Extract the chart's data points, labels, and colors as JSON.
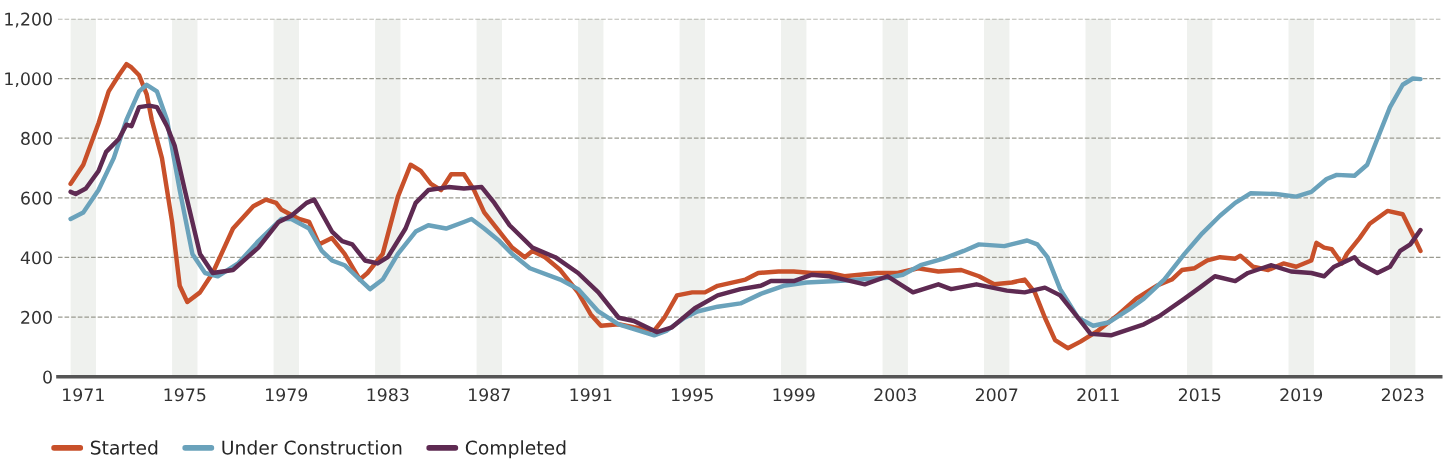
{
  "chart_data": {
    "type": "line",
    "xlim": [
      1970,
      2024.5
    ],
    "ylim": [
      0,
      1200
    ],
    "xticks": [
      1971,
      1975,
      1979,
      1983,
      1987,
      1991,
      1995,
      1999,
      2003,
      2007,
      2011,
      2015,
      2019,
      2023
    ],
    "yticks": [
      0,
      {
        "value": 200,
        "label": "200"
      },
      {
        "value": 400,
        "label": "400"
      },
      {
        "value": 600,
        "label": "600"
      },
      {
        "value": 800,
        "label": "800"
      },
      {
        "value": 1000,
        "label": "1,000"
      },
      {
        "value": 1200,
        "label": "1,200"
      }
    ],
    "grid": "y",
    "legend": "bottom left",
    "line_style": "solid",
    "marker": "none",
    "bands": [
      {
        "axis": "x",
        "from": 1970.5,
        "to": 1971.5,
        "color": "#eff1ee"
      },
      {
        "axis": "x",
        "from": 1974.5,
        "to": 1975.5,
        "color": "#eff1ee"
      },
      {
        "axis": "x",
        "from": 1978.5,
        "to": 1979.5,
        "color": "#eff1ee"
      },
      {
        "axis": "x",
        "from": 1982.5,
        "to": 1983.5,
        "color": "#eff1ee"
      },
      {
        "axis": "x",
        "from": 1986.5,
        "to": 1987.5,
        "color": "#eff1ee"
      },
      {
        "axis": "x",
        "from": 1990.5,
        "to": 1991.5,
        "color": "#eff1ee"
      },
      {
        "axis": "x",
        "from": 1994.5,
        "to": 1995.5,
        "color": "#eff1ee"
      },
      {
        "axis": "x",
        "from": 1998.5,
        "to": 1999.5,
        "color": "#eff1ee"
      },
      {
        "axis": "x",
        "from": 2002.5,
        "to": 2003.5,
        "color": "#eff1ee"
      },
      {
        "axis": "x",
        "from": 2006.5,
        "to": 2007.5,
        "color": "#eff1ee"
      },
      {
        "axis": "x",
        "from": 2010.5,
        "to": 2011.5,
        "color": "#eff1ee"
      },
      {
        "axis": "x",
        "from": 2014.5,
        "to": 2015.5,
        "color": "#eff1ee"
      },
      {
        "axis": "x",
        "from": 2018.5,
        "to": 2019.5,
        "color": "#eff1ee"
      },
      {
        "axis": "x",
        "from": 2022.5,
        "to": 2023.5,
        "color": "#eff1ee"
      }
    ],
    "series": [
      {
        "name": "Started",
        "color": "#c8502a",
        "x": [
          1970.5,
          1971.0,
          1971.6,
          1972.0,
          1972.4,
          1972.7,
          1972.9,
          1973.2,
          1973.5,
          1973.7,
          1974.1,
          1974.5,
          1974.8,
          1975.1,
          1975.6,
          1976.1,
          1976.9,
          1977.7,
          1978.2,
          1978.6,
          1978.8,
          1979.5,
          1979.9,
          1980.3,
          1980.8,
          1981.3,
          1981.9,
          1982.2,
          1982.8,
          1983.4,
          1983.9,
          1984.3,
          1984.7,
          1985.1,
          1985.5,
          1986.0,
          1986.4,
          1986.8,
          1987.4,
          1987.9,
          1988.4,
          1988.7,
          1989.2,
          1989.8,
          1990.5,
          1991.0,
          1991.4,
          1992.1,
          1992.7,
          1993.5,
          1993.9,
          1994.4,
          1995.0,
          1995.5,
          1996.0,
          1997.1,
          1997.6,
          1998.4,
          1999.0,
          1999.7,
          2000.4,
          2001.0,
          2002.3,
          2003.1,
          2003.9,
          2004.7,
          2005.6,
          2006.3,
          2006.9,
          2007.6,
          2008.1,
          2008.5,
          2008.9,
          2009.3,
          2009.8,
          2010.3,
          2011.0,
          2011.8,
          2012.5,
          2013.3,
          2013.9,
          2014.3,
          2014.8,
          2015.3,
          2015.8,
          2016.4,
          2016.6,
          2017.1,
          2017.7,
          2018.3,
          2018.8,
          2019.4,
          2019.6,
          2019.9,
          2020.2,
          2020.6,
          2020.8,
          2021.3,
          2021.7,
          2022.4,
          2023.0,
          2023.4,
          2023.7
        ],
        "values": [
          647,
          711,
          850,
          957,
          1011,
          1048,
          1037,
          1011,
          947,
          861,
          733,
          519,
          305,
          251,
          283,
          348,
          497,
          572,
          594,
          583,
          561,
          529,
          519,
          444,
          465,
          412,
          326,
          348,
          412,
          604,
          711,
          690,
          647,
          626,
          679,
          679,
          626,
          551,
          487,
          433,
          401,
          422,
          401,
          358,
          283,
          209,
          171,
          176,
          166,
          155,
          198,
          273,
          283,
          283,
          305,
          326,
          348,
          353,
          353,
          348,
          348,
          337,
          348,
          348,
          364,
          353,
          358,
          337,
          310,
          316,
          326,
          283,
          198,
          123,
          96,
          118,
          155,
          209,
          262,
          305,
          326,
          358,
          364,
          390,
          401,
          396,
          406,
          369,
          358,
          380,
          369,
          390,
          449,
          433,
          428,
          380,
          412,
          465,
          513,
          556,
          545,
          476,
          422
        ]
      },
      {
        "name": "Under Construction",
        "color": "#6aa2bb",
        "x": [
          1970.5,
          1971.0,
          1971.6,
          1972.2,
          1972.7,
          1973.2,
          1973.5,
          1973.9,
          1974.3,
          1974.8,
          1975.3,
          1975.8,
          1976.3,
          1977.1,
          1977.9,
          1978.8,
          1979.2,
          1979.9,
          1980.4,
          1980.8,
          1981.3,
          1981.9,
          1982.3,
          1982.8,
          1983.4,
          1984.1,
          1984.6,
          1985.3,
          1986.0,
          1986.3,
          1986.8,
          1987.4,
          1987.9,
          1988.6,
          1989.8,
          1990.5,
          1991.3,
          1992.1,
          1992.9,
          1993.5,
          1994.0,
          1994.7,
          1995.2,
          1996.0,
          1996.9,
          1997.7,
          1998.6,
          1999.5,
          2000.7,
          2001.6,
          2002.7,
          2003.3,
          2004.0,
          2004.9,
          2005.7,
          2006.3,
          2007.3,
          2008.2,
          2008.6,
          2009.0,
          2009.5,
          2010.2,
          2010.8,
          2011.4,
          2012.2,
          2012.8,
          2013.6,
          2014.4,
          2015.1,
          2015.8,
          2016.4,
          2017.0,
          2018.0,
          2018.8,
          2019.4,
          2020.0,
          2020.4,
          2021.1,
          2021.6,
          2022.0,
          2022.5,
          2023.0,
          2023.4,
          2023.7
        ],
        "values": [
          529,
          551,
          626,
          733,
          861,
          957,
          979,
          957,
          861,
          626,
          412,
          348,
          337,
          380,
          455,
          529,
          529,
          497,
          422,
          390,
          374,
          326,
          294,
          326,
          412,
          487,
          508,
          497,
          519,
          529,
          497,
          455,
          412,
          364,
          326,
          294,
          219,
          176,
          155,
          139,
          155,
          198,
          219,
          235,
          246,
          278,
          305,
          316,
          321,
          326,
          332,
          342,
          374,
          396,
          422,
          444,
          438,
          457,
          444,
          401,
          294,
          198,
          171,
          182,
          225,
          262,
          326,
          412,
          481,
          540,
          583,
          615,
          613,
          604,
          620,
          663,
          677,
          674,
          711,
          797,
          904,
          979,
          1000,
          998
        ]
      },
      {
        "name": "Completed",
        "color": "#5e2a52",
        "x": [
          1970.5,
          1970.7,
          1971.1,
          1971.6,
          1971.9,
          1972.4,
          1972.7,
          1972.9,
          1973.2,
          1973.6,
          1973.9,
          1974.3,
          1974.6,
          1975.0,
          1975.6,
          1976.1,
          1976.9,
          1977.9,
          1978.7,
          1979.2,
          1979.8,
          1980.1,
          1980.8,
          1981.2,
          1981.6,
          1982.1,
          1982.6,
          1983.0,
          1983.7,
          1984.1,
          1984.6,
          1985.4,
          1986.0,
          1986.7,
          1987.2,
          1987.8,
          1988.7,
          1989.6,
          1990.5,
          1991.3,
          1992.1,
          1992.7,
          1993.6,
          1994.2,
          1995.1,
          1996.0,
          1996.9,
          1997.7,
          1998.1,
          1999.0,
          1999.7,
          2000.4,
          2001.0,
          2001.8,
          2002.7,
          2003.7,
          2004.7,
          2005.2,
          2006.2,
          2007.4,
          2008.1,
          2008.9,
          2009.5,
          2010.2,
          2010.7,
          2011.5,
          2012.8,
          2013.4,
          2014.4,
          2015.0,
          2015.6,
          2016.4,
          2016.9,
          2017.8,
          2018.6,
          2019.4,
          2019.9,
          2020.3,
          2021.1,
          2021.3,
          2022.0,
          2022.5,
          2022.9,
          2023.3,
          2023.7
        ],
        "values": [
          620,
          613,
          631,
          690,
          754,
          797,
          845,
          840,
          904,
          909,
          904,
          840,
          775,
          626,
          412,
          348,
          358,
          433,
          519,
          540,
          583,
          594,
          487,
          455,
          444,
          390,
          380,
          401,
          497,
          583,
          626,
          636,
          631,
          636,
          583,
          508,
          433,
          401,
          348,
          283,
          198,
          187,
          150,
          166,
          230,
          273,
          294,
          305,
          321,
          321,
          342,
          337,
          326,
          310,
          337,
          283,
          310,
          294,
          310,
          289,
          283,
          299,
          273,
          198,
          144,
          139,
          176,
          203,
          262,
          299,
          337,
          321,
          348,
          374,
          353,
          348,
          337,
          369,
          401,
          380,
          348,
          369,
          422,
          444,
          492
        ]
      }
    ]
  }
}
